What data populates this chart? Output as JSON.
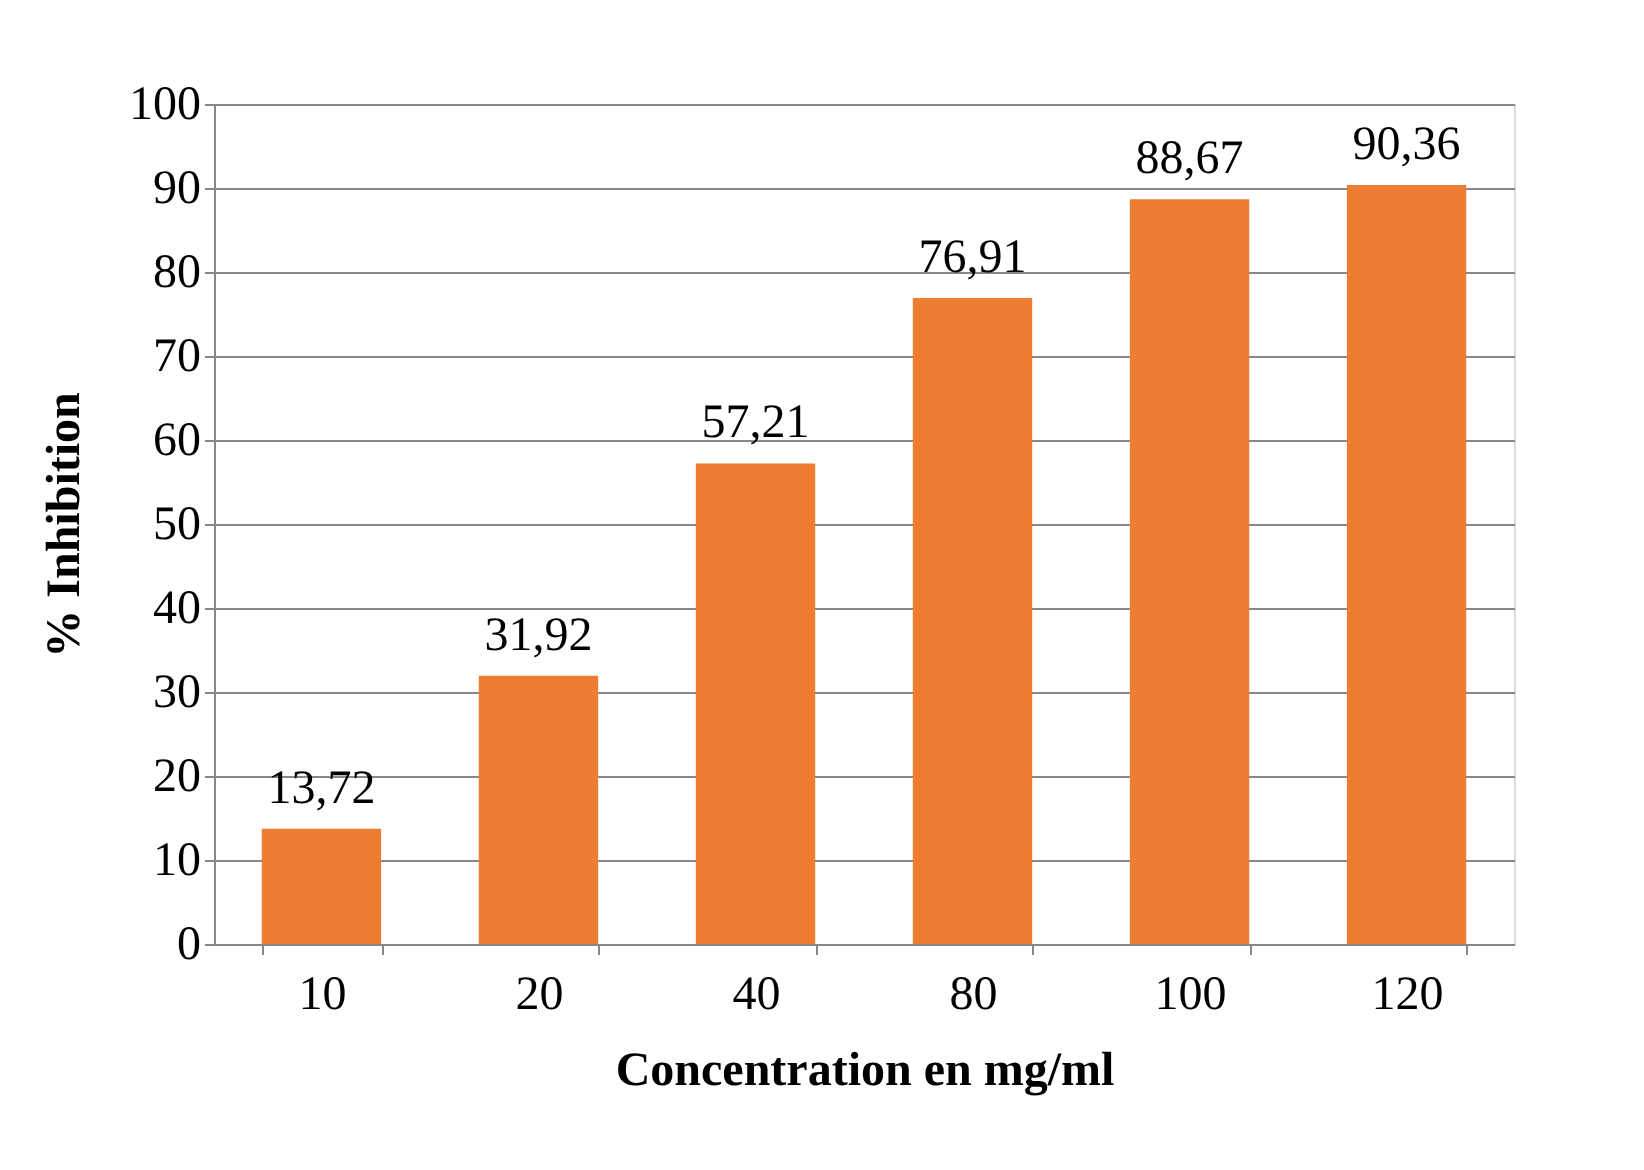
{
  "chart_data": {
    "type": "bar",
    "xlabel": "Concentration en mg/ml",
    "ylabel": "% Inhibition",
    "categories": [
      "10",
      "20",
      "40",
      "80",
      "100",
      "120"
    ],
    "values": [
      13.72,
      31.92,
      57.21,
      76.91,
      88.67,
      90.36
    ],
    "value_labels": [
      "13,72",
      "31,92",
      "57,21",
      "76,91",
      "88,67",
      "90,36"
    ],
    "color": "#ed7d31",
    "ylim": [
      0,
      100
    ],
    "yticks": [
      0,
      10,
      20,
      30,
      40,
      50,
      60,
      70,
      80,
      90,
      100
    ],
    "grid": "y"
  }
}
